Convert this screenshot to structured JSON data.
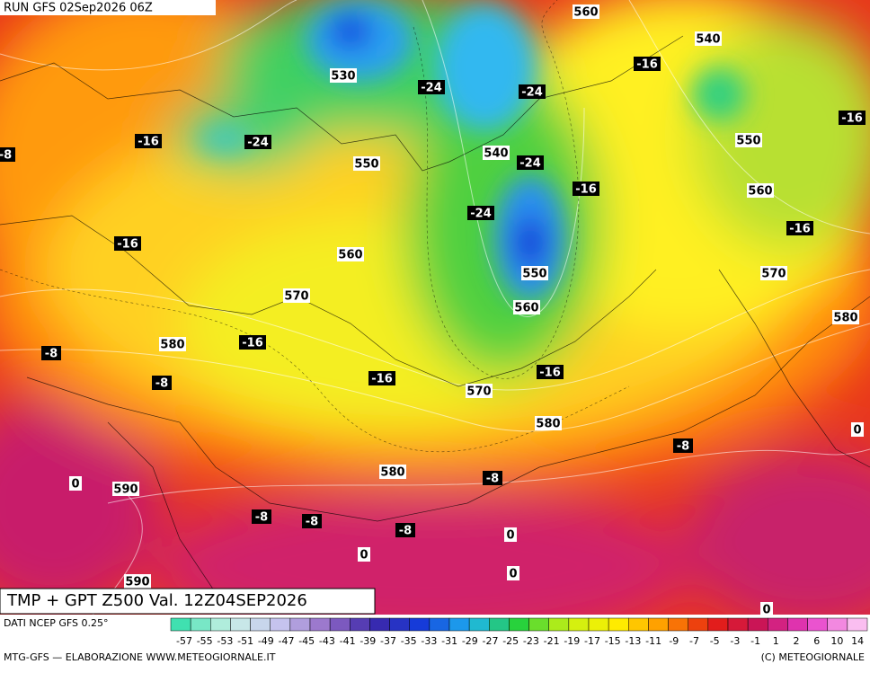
{
  "header": {
    "run": "RUN GFS 02Sep2026 06Z"
  },
  "map": {
    "height_labels": [
      "560",
      "540",
      "530",
      "550",
      "540",
      "550",
      "560",
      "560",
      "550",
      "570",
      "570",
      "560",
      "580",
      "580",
      "570",
      "580",
      "580",
      "590",
      "590",
      "0",
      "0",
      "0",
      "0",
      "0",
      "0"
    ],
    "temperature_labels": [
      "-16",
      "-24",
      "-24",
      "-16",
      "-16",
      "-24",
      "-8",
      "-24",
      "-16",
      "-24",
      "-16",
      "-16",
      "-16",
      "-8",
      "-8",
      "-16",
      "-16",
      "-8",
      "-8",
      "-8",
      "-8",
      "-8"
    ]
  },
  "footer": {
    "title": "TMP + GPT Z500 Val. 12Z04SEP2026",
    "source": "DATI NCEP GFS 0.25°",
    "credit": "MTG-GFS — ELABORAZIONE WWW.METEOGIORNALE.IT",
    "copyright": "(C) METEOGIORNALE",
    "colorbar": [
      -57,
      -55,
      -53,
      -51,
      -49,
      -47,
      -45,
      -43,
      -41,
      -39,
      -37,
      -35,
      -33,
      -31,
      -29,
      -27,
      -25,
      -23,
      -21,
      -19,
      -17,
      -15,
      -13,
      -11,
      -9,
      -7,
      -5,
      -3,
      -1,
      1,
      2,
      6,
      10,
      14
    ]
  }
}
